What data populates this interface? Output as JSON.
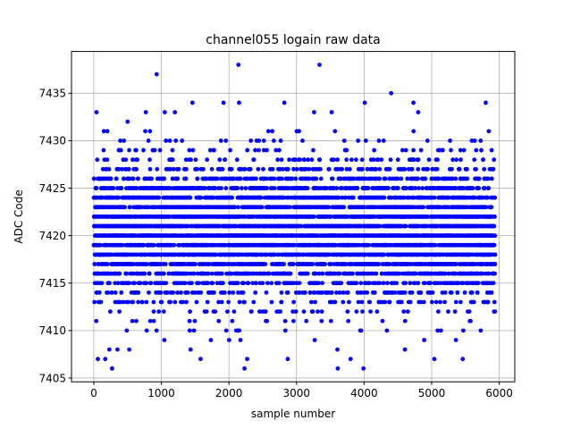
{
  "chart_data": {
    "type": "scatter",
    "title": "channel055 logain raw data",
    "xlabel": "sample number",
    "ylabel": "ADC Code",
    "xlim": [
      -330,
      6230
    ],
    "ylim": [
      7404.6,
      7439.4
    ],
    "xticks": [
      0,
      1000,
      2000,
      3000,
      4000,
      5000,
      6000
    ],
    "yticks": [
      7405,
      7410,
      7415,
      7420,
      7425,
      7430,
      7435
    ],
    "grid": true,
    "marker_color": "#0000ff",
    "series": [
      {
        "values_note": "ADC codes vs sample number",
        "n_samples": 5940,
        "y_min": 7406,
        "y_max": 7438,
        "dense_range": [
          7414,
          7426
        ],
        "outliers": [
          {
            "x": 40,
            "y": 7433
          },
          {
            "x": 60,
            "y": 7407
          },
          {
            "x": 150,
            "y": 7431
          },
          {
            "x": 170,
            "y": 7407
          },
          {
            "x": 200,
            "y": 7431
          },
          {
            "x": 230,
            "y": 7408
          },
          {
            "x": 270,
            "y": 7406
          },
          {
            "x": 500,
            "y": 7432
          },
          {
            "x": 770,
            "y": 7433
          },
          {
            "x": 930,
            "y": 7437
          },
          {
            "x": 1050,
            "y": 7433
          },
          {
            "x": 1200,
            "y": 7433
          },
          {
            "x": 1460,
            "y": 7434
          },
          {
            "x": 1580,
            "y": 7407
          },
          {
            "x": 1920,
            "y": 7434
          },
          {
            "x": 2140,
            "y": 7438
          },
          {
            "x": 2150,
            "y": 7434
          },
          {
            "x": 2230,
            "y": 7406
          },
          {
            "x": 2270,
            "y": 7407
          },
          {
            "x": 2820,
            "y": 7434
          },
          {
            "x": 2870,
            "y": 7407
          },
          {
            "x": 3340,
            "y": 7438
          },
          {
            "x": 3260,
            "y": 7433
          },
          {
            "x": 3520,
            "y": 7433
          },
          {
            "x": 3610,
            "y": 7406
          },
          {
            "x": 3800,
            "y": 7407
          },
          {
            "x": 3990,
            "y": 7406
          },
          {
            "x": 4010,
            "y": 7434
          },
          {
            "x": 4400,
            "y": 7435
          },
          {
            "x": 4730,
            "y": 7434
          },
          {
            "x": 4800,
            "y": 7433
          },
          {
            "x": 5040,
            "y": 7407
          },
          {
            "x": 5460,
            "y": 7407
          },
          {
            "x": 5800,
            "y": 7434
          }
        ]
      }
    ]
  }
}
